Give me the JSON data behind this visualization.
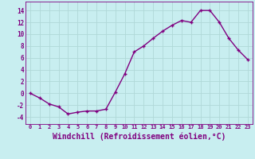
{
  "x": [
    0,
    1,
    2,
    3,
    4,
    5,
    6,
    7,
    8,
    9,
    10,
    11,
    12,
    13,
    14,
    15,
    16,
    17,
    18,
    19,
    20,
    21,
    22,
    23
  ],
  "y": [
    0.0,
    -0.8,
    -1.8,
    -2.3,
    -3.5,
    -3.2,
    -3.0,
    -3.0,
    -2.7,
    0.2,
    3.3,
    7.0,
    8.0,
    9.3,
    10.5,
    11.5,
    12.3,
    12.0,
    14.0,
    14.0,
    12.0,
    9.3,
    7.3,
    5.7
  ],
  "line_color": "#800080",
  "marker": "+",
  "marker_size": 3,
  "marker_linewidth": 1.0,
  "bg_color": "#c8eef0",
  "grid_color": "#b0d8d8",
  "xlabel": "Windchill (Refroidissement éolien,°C)",
  "xlabel_fontsize": 7,
  "xtick_labels": [
    "0",
    "1",
    "2",
    "3",
    "4",
    "5",
    "6",
    "7",
    "8",
    "9",
    "10",
    "11",
    "12",
    "13",
    "14",
    "15",
    "16",
    "17",
    "18",
    "19",
    "20",
    "21",
    "22",
    "23"
  ],
  "ytick_values": [
    -4,
    -2,
    0,
    2,
    4,
    6,
    8,
    10,
    12,
    14
  ],
  "ylim": [
    -5.2,
    15.5
  ],
  "xlim": [
    -0.5,
    23.5
  ],
  "line_width": 1.0
}
